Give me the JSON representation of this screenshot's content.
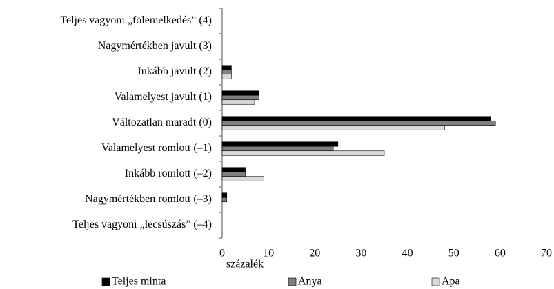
{
  "chart_data": {
    "type": "hbar",
    "categories": [
      "Teljes vagyoni „fölemelkedés” (4)",
      "Nagymértékben javult (3)",
      "Inkább javult (2)",
      "Valamelyest javult (1)",
      "Változatlan maradt (0)",
      "Valamelyest romlott (–1)",
      "Inkább romlott (–2)",
      "Nagymértékben romlott (–3)",
      "Teljes vagyoni „lecsúszás” (–4)"
    ],
    "series": [
      {
        "name": "Teljes minta",
        "color": "#000000",
        "values": [
          0,
          0,
          2,
          8,
          58,
          25,
          5,
          1,
          0
        ]
      },
      {
        "name": "Anya",
        "color": "#7f7f7f",
        "values": [
          0,
          0,
          2,
          8,
          59,
          24,
          5,
          1,
          0
        ]
      },
      {
        "name": "Apa",
        "color": "#d9d9d9",
        "values": [
          0,
          0,
          2,
          7,
          48,
          35,
          9,
          0,
          0
        ]
      }
    ],
    "xlim": [
      0,
      70
    ],
    "xticks": [
      0,
      10,
      20,
      30,
      40,
      50,
      60,
      70
    ],
    "xlabel": "százalék",
    "legend": "bottom"
  }
}
